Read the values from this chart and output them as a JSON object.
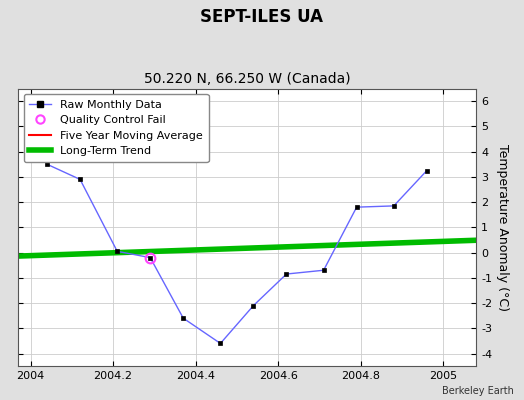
{
  "title": "SEPT-ILES UA",
  "subtitle": "50.220 N, 66.250 W (Canada)",
  "ylabel": "Temperature Anomaly (°C)",
  "credit": "Berkeley Earth",
  "raw_x": [
    2004.04,
    2004.12,
    2004.21,
    2004.29,
    2004.37,
    2004.46,
    2004.54,
    2004.62,
    2004.71,
    2004.79,
    2004.88,
    2004.96
  ],
  "raw_y": [
    3.5,
    2.9,
    0.05,
    -0.2,
    -2.6,
    -3.6,
    -2.1,
    -0.85,
    -0.7,
    1.8,
    1.85,
    3.25
  ],
  "qc_fail_x": [
    2004.29
  ],
  "qc_fail_y": [
    -0.2
  ],
  "trend_x": [
    2003.95,
    2005.1
  ],
  "trend_y": [
    -0.15,
    0.5
  ],
  "xlim": [
    2003.97,
    2005.08
  ],
  "ylim": [
    -4.5,
    6.5
  ],
  "yticks": [
    -4,
    -3,
    -2,
    -1,
    0,
    1,
    2,
    3,
    4,
    5,
    6
  ],
  "xticks": [
    2004.0,
    2004.2,
    2004.4,
    2004.6,
    2004.8,
    2005.0
  ],
  "xtick_labels": [
    "2004",
    "2004.2",
    "2004.4",
    "2004.6",
    "2004.8",
    "2005"
  ],
  "raw_color": "#6666ff",
  "raw_marker_color": "#000000",
  "trend_color": "#00bb00",
  "moving_avg_color": "#ff0000",
  "qc_fail_color": "#ff44ff",
  "bg_color": "#e0e0e0",
  "plot_bg_color": "#ffffff",
  "grid_color": "#cccccc",
  "title_fontsize": 12,
  "subtitle_fontsize": 10,
  "label_fontsize": 9,
  "tick_fontsize": 8,
  "legend_fontsize": 8,
  "trend_linewidth": 4,
  "raw_linewidth": 1.0
}
